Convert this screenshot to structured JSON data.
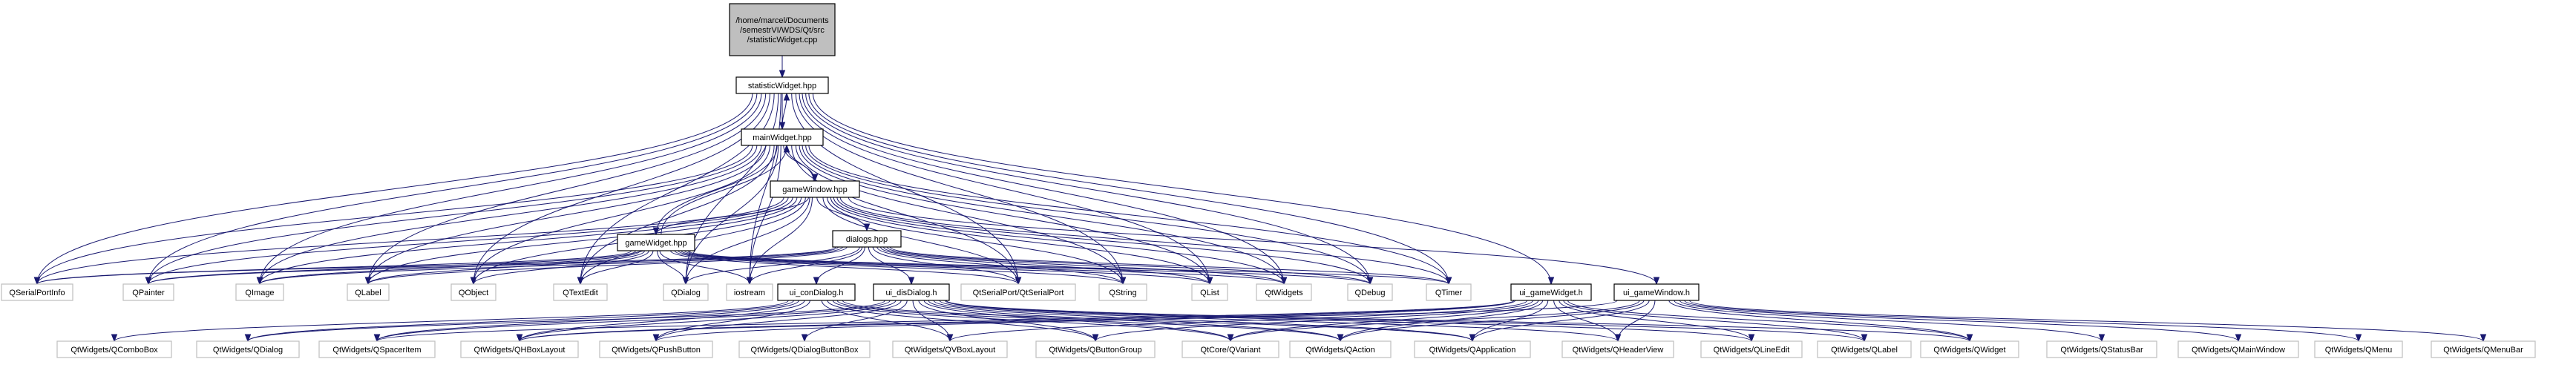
{
  "diagram": {
    "edge_color": "#191970",
    "root_fill": "#bfbfbf",
    "external_border": "#bfbfbf",
    "nodes": [
      {
        "id": "root",
        "label": [
          "/home/marcel/Documents",
          "/semestrVI/WDS/Qt/src",
          "/statisticWidget.cpp"
        ],
        "kind": "root"
      },
      {
        "id": "statisticWidget",
        "label": [
          "statisticWidget.hpp"
        ],
        "kind": "internal"
      },
      {
        "id": "mainWidget",
        "label": [
          "mainWidget.hpp"
        ],
        "kind": "internal"
      },
      {
        "id": "gameWindow",
        "label": [
          "gameWindow.hpp"
        ],
        "kind": "internal"
      },
      {
        "id": "dialogs",
        "label": [
          "dialogs.hpp"
        ],
        "kind": "internal"
      },
      {
        "id": "gameWidget",
        "label": [
          "gameWidget.hpp"
        ],
        "kind": "internal"
      },
      {
        "id": "ui_conDialog",
        "label": [
          "ui_conDialog.h"
        ],
        "kind": "internal"
      },
      {
        "id": "ui_disDialog",
        "label": [
          "ui_disDialog.h"
        ],
        "kind": "internal"
      },
      {
        "id": "ui_gameWidget",
        "label": [
          "ui_gameWidget.h"
        ],
        "kind": "internal"
      },
      {
        "id": "ui_gameWindow",
        "label": [
          "ui_gameWindow.h"
        ],
        "kind": "internal"
      },
      {
        "id": "QSerialPortInfo",
        "label": [
          "QSerialPortInfo"
        ],
        "kind": "external"
      },
      {
        "id": "QPainter",
        "label": [
          "QPainter"
        ],
        "kind": "external"
      },
      {
        "id": "QImage",
        "label": [
          "QImage"
        ],
        "kind": "external"
      },
      {
        "id": "QLabel",
        "label": [
          "QLabel"
        ],
        "kind": "external"
      },
      {
        "id": "QObject",
        "label": [
          "QObject"
        ],
        "kind": "external"
      },
      {
        "id": "QTextEdit",
        "label": [
          "QTextEdit"
        ],
        "kind": "external"
      },
      {
        "id": "QDialog",
        "label": [
          "QDialog"
        ],
        "kind": "external"
      },
      {
        "id": "iostream",
        "label": [
          "iostream"
        ],
        "kind": "external"
      },
      {
        "id": "QSerialPort",
        "label": [
          "QtSerialPort/QtSerialPort"
        ],
        "kind": "external"
      },
      {
        "id": "QString",
        "label": [
          "QString"
        ],
        "kind": "external"
      },
      {
        "id": "QList",
        "label": [
          "QList"
        ],
        "kind": "external"
      },
      {
        "id": "QWidgets",
        "label": [
          "QtWidgets"
        ],
        "kind": "external"
      },
      {
        "id": "QDebug",
        "label": [
          "QDebug"
        ],
        "kind": "external"
      },
      {
        "id": "QTimer",
        "label": [
          "QTimer"
        ],
        "kind": "external"
      },
      {
        "id": "QComboBox",
        "label": [
          "QtWidgets/QComboBox"
        ],
        "kind": "external"
      },
      {
        "id": "QDialogW",
        "label": [
          "QtWidgets/QDialog"
        ],
        "kind": "external"
      },
      {
        "id": "QSpacerItem",
        "label": [
          "QtWidgets/QSpacerItem"
        ],
        "kind": "external"
      },
      {
        "id": "QHBoxLayout",
        "label": [
          "QtWidgets/QHBoxLayout"
        ],
        "kind": "external"
      },
      {
        "id": "QPushButton",
        "label": [
          "QtWidgets/QPushButton"
        ],
        "kind": "external"
      },
      {
        "id": "QDialogButtonBox",
        "label": [
          "QtWidgets/QDialogButtonBox"
        ],
        "kind": "external"
      },
      {
        "id": "QVBoxLayout",
        "label": [
          "QtWidgets/QVBoxLayout"
        ],
        "kind": "external"
      },
      {
        "id": "QButtonGroup",
        "label": [
          "QtWidgets/QButtonGroup"
        ],
        "kind": "external"
      },
      {
        "id": "QVariant",
        "label": [
          "QtCore/QVariant"
        ],
        "kind": "external"
      },
      {
        "id": "QAction",
        "label": [
          "QtWidgets/QAction"
        ],
        "kind": "external"
      },
      {
        "id": "QApplication",
        "label": [
          "QtWidgets/QApplication"
        ],
        "kind": "external"
      },
      {
        "id": "QHeaderView",
        "label": [
          "QtWidgets/QHeaderView"
        ],
        "kind": "external"
      },
      {
        "id": "QLineEdit",
        "label": [
          "QtWidgets/QLineEdit"
        ],
        "kind": "external"
      },
      {
        "id": "QLabelW",
        "label": [
          "QtWidgets/QLabel"
        ],
        "kind": "external"
      },
      {
        "id": "QWidget",
        "label": [
          "QtWidgets/QWidget"
        ],
        "kind": "external"
      },
      {
        "id": "QStatusBar",
        "label": [
          "QtWidgets/QStatusBar"
        ],
        "kind": "external"
      },
      {
        "id": "QMainWindow",
        "label": [
          "QtWidgets/QMainWindow"
        ],
        "kind": "external"
      },
      {
        "id": "QMenu",
        "label": [
          "QtWidgets/QMenu"
        ],
        "kind": "external"
      },
      {
        "id": "QMenuBar",
        "label": [
          "QtWidgets/QMenuBar"
        ],
        "kind": "external"
      }
    ],
    "edges": [
      [
        "root",
        "statisticWidget"
      ],
      [
        "statisticWidget",
        "mainWidget"
      ],
      [
        "statisticWidget",
        "QSerialPortInfo"
      ],
      [
        "statisticWidget",
        "QPainter"
      ],
      [
        "statisticWidget",
        "QImage"
      ],
      [
        "statisticWidget",
        "QLabel"
      ],
      [
        "statisticWidget",
        "QObject"
      ],
      [
        "statisticWidget",
        "QTextEdit"
      ],
      [
        "statisticWidget",
        "QDialog"
      ],
      [
        "statisticWidget",
        "iostream"
      ],
      [
        "statisticWidget",
        "QSerialPort"
      ],
      [
        "statisticWidget",
        "QString"
      ],
      [
        "statisticWidget",
        "QList"
      ],
      [
        "statisticWidget",
        "QWidgets"
      ],
      [
        "statisticWidget",
        "QDebug"
      ],
      [
        "statisticWidget",
        "QTimer"
      ],
      [
        "statisticWidget",
        "ui_gameWidget"
      ],
      [
        "mainWidget",
        "statisticWidget"
      ],
      [
        "mainWidget",
        "gameWindow"
      ],
      [
        "mainWidget",
        "gameWidget"
      ],
      [
        "mainWidget",
        "QSerialPortInfo"
      ],
      [
        "mainWidget",
        "QPainter"
      ],
      [
        "mainWidget",
        "QImage"
      ],
      [
        "mainWidget",
        "QLabel"
      ],
      [
        "mainWidget",
        "QObject"
      ],
      [
        "mainWidget",
        "QTextEdit"
      ],
      [
        "mainWidget",
        "QDialog"
      ],
      [
        "mainWidget",
        "iostream"
      ],
      [
        "mainWidget",
        "QSerialPort"
      ],
      [
        "mainWidget",
        "QString"
      ],
      [
        "mainWidget",
        "QList"
      ],
      [
        "mainWidget",
        "QWidgets"
      ],
      [
        "mainWidget",
        "QDebug"
      ],
      [
        "mainWidget",
        "QTimer"
      ],
      [
        "gameWindow",
        "mainWidget"
      ],
      [
        "gameWindow",
        "dialogs"
      ],
      [
        "gameWindow",
        "gameWidget"
      ],
      [
        "gameWindow",
        "ui_gameWindow"
      ],
      [
        "gameWindow",
        "QSerialPortInfo"
      ],
      [
        "gameWindow",
        "QPainter"
      ],
      [
        "gameWindow",
        "QImage"
      ],
      [
        "gameWindow",
        "QLabel"
      ],
      [
        "gameWindow",
        "QObject"
      ],
      [
        "gameWindow",
        "QTextEdit"
      ],
      [
        "gameWindow",
        "QDialog"
      ],
      [
        "gameWindow",
        "iostream"
      ],
      [
        "gameWindow",
        "QSerialPort"
      ],
      [
        "gameWindow",
        "QString"
      ],
      [
        "gameWindow",
        "QList"
      ],
      [
        "gameWindow",
        "QWidgets"
      ],
      [
        "gameWindow",
        "QDebug"
      ],
      [
        "gameWindow",
        "QTimer"
      ],
      [
        "gameWidget",
        "mainWidget"
      ],
      [
        "gameWidget",
        "QSerialPortInfo"
      ],
      [
        "gameWidget",
        "QPainter"
      ],
      [
        "gameWidget",
        "QImage"
      ],
      [
        "gameWidget",
        "QLabel"
      ],
      [
        "gameWidget",
        "QObject"
      ],
      [
        "gameWidget",
        "QTextEdit"
      ],
      [
        "gameWidget",
        "QDialog"
      ],
      [
        "gameWidget",
        "iostream"
      ],
      [
        "gameWidget",
        "QSerialPort"
      ],
      [
        "gameWidget",
        "QString"
      ],
      [
        "gameWidget",
        "QList"
      ],
      [
        "gameWidget",
        "QWidgets"
      ],
      [
        "gameWidget",
        "QDebug"
      ],
      [
        "gameWidget",
        "QTimer"
      ],
      [
        "dialogs",
        "ui_conDialog"
      ],
      [
        "dialogs",
        "ui_disDialog"
      ],
      [
        "dialogs",
        "QSerialPortInfo"
      ],
      [
        "dialogs",
        "QPainter"
      ],
      [
        "dialogs",
        "QImage"
      ],
      [
        "dialogs",
        "QLabel"
      ],
      [
        "dialogs",
        "QDialog"
      ],
      [
        "dialogs",
        "iostream"
      ],
      [
        "dialogs",
        "QSerialPort"
      ],
      [
        "dialogs",
        "QString"
      ],
      [
        "dialogs",
        "QList"
      ],
      [
        "dialogs",
        "QWidgets"
      ],
      [
        "dialogs",
        "QDebug"
      ],
      [
        "dialogs",
        "QTimer"
      ],
      [
        "ui_conDialog",
        "QComboBox"
      ],
      [
        "ui_conDialog",
        "QDialogW"
      ],
      [
        "ui_conDialog",
        "QSpacerItem"
      ],
      [
        "ui_conDialog",
        "QHBoxLayout"
      ],
      [
        "ui_conDialog",
        "QPushButton"
      ],
      [
        "ui_conDialog",
        "QVBoxLayout"
      ],
      [
        "ui_conDialog",
        "QButtonGroup"
      ],
      [
        "ui_conDialog",
        "QVariant"
      ],
      [
        "ui_conDialog",
        "QAction"
      ],
      [
        "ui_conDialog",
        "QApplication"
      ],
      [
        "ui_disDialog",
        "QDialogW"
      ],
      [
        "ui_disDialog",
        "QSpacerItem"
      ],
      [
        "ui_disDialog",
        "QHBoxLayout"
      ],
      [
        "ui_disDialog",
        "QPushButton"
      ],
      [
        "ui_disDialog",
        "QDialogButtonBox"
      ],
      [
        "ui_disDialog",
        "QVBoxLayout"
      ],
      [
        "ui_disDialog",
        "QButtonGroup"
      ],
      [
        "ui_disDialog",
        "QVariant"
      ],
      [
        "ui_disDialog",
        "QAction"
      ],
      [
        "ui_disDialog",
        "QApplication"
      ],
      [
        "ui_disDialog",
        "QHeaderView"
      ],
      [
        "ui_disDialog",
        "QLineEdit"
      ],
      [
        "ui_disDialog",
        "QLabelW"
      ],
      [
        "ui_disDialog",
        "QWidget"
      ],
      [
        "ui_gameWidget",
        "QSpacerItem"
      ],
      [
        "ui_gameWidget",
        "QHBoxLayout"
      ],
      [
        "ui_gameWidget",
        "QPushButton"
      ],
      [
        "ui_gameWidget",
        "QVBoxLayout"
      ],
      [
        "ui_gameWidget",
        "QButtonGroup"
      ],
      [
        "ui_gameWidget",
        "QVariant"
      ],
      [
        "ui_gameWidget",
        "QAction"
      ],
      [
        "ui_gameWidget",
        "QApplication"
      ],
      [
        "ui_gameWidget",
        "QHeaderView"
      ],
      [
        "ui_gameWidget",
        "QLineEdit"
      ],
      [
        "ui_gameWidget",
        "QLabelW"
      ],
      [
        "ui_gameWidget",
        "QWidget"
      ],
      [
        "ui_gameWindow",
        "QHBoxLayout"
      ],
      [
        "ui_gameWindow",
        "QVariant"
      ],
      [
        "ui_gameWindow",
        "QAction"
      ],
      [
        "ui_gameWindow",
        "QApplication"
      ],
      [
        "ui_gameWindow",
        "QHeaderView"
      ],
      [
        "ui_gameWindow",
        "QWidget"
      ],
      [
        "ui_gameWindow",
        "QStatusBar"
      ],
      [
        "ui_gameWindow",
        "QMainWindow"
      ],
      [
        "ui_gameWindow",
        "QMenu"
      ],
      [
        "ui_gameWindow",
        "QMenuBar"
      ]
    ]
  }
}
